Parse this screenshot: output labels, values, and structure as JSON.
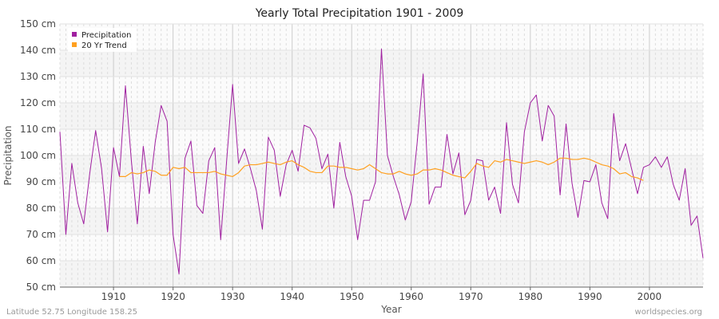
{
  "chart_data": {
    "type": "line",
    "title": "Yearly Total Precipitation 1901 - 2009",
    "xlabel": "Year",
    "ylabel": "Precipitation",
    "xlim": [
      1901,
      2009
    ],
    "ylim": [
      50,
      150
    ],
    "x_ticks": [
      1910,
      1920,
      1930,
      1940,
      1950,
      1960,
      1970,
      1980,
      1990,
      2000
    ],
    "y_ticks": [
      50,
      60,
      70,
      80,
      90,
      100,
      110,
      120,
      130,
      140,
      150
    ],
    "y_tick_labels": [
      "50 cm",
      "60 cm",
      "70 cm",
      "80 cm",
      "90 cm",
      "100 cm",
      "110 cm",
      "120 cm",
      "130 cm",
      "140 cm",
      "150 cm"
    ],
    "legend_position": "top-left",
    "grid": true,
    "colors": {
      "precipitation": "#a020a0",
      "trend": "#ffa020"
    },
    "series": [
      {
        "name": "Precipitation",
        "color": "#a020a0",
        "x_start": 1901,
        "values": [
          109,
          70,
          97,
          82,
          74,
          93,
          109.5,
          95,
          71,
          103,
          92,
          126.5,
          98,
          74,
          103.5,
          85.5,
          105,
          119,
          113,
          70,
          55,
          99,
          105.5,
          81,
          78,
          98,
          103,
          68,
          98,
          127,
          97,
          102.5,
          95,
          86.5,
          72,
          107,
          102,
          84.5,
          96.5,
          102,
          94,
          111.5,
          110.5,
          106.5,
          95,
          100.5,
          80,
          105,
          92,
          84.5,
          68,
          83,
          83,
          90,
          140.5,
          100,
          92,
          85,
          75.5,
          82.5,
          105,
          131,
          81.5,
          88,
          88,
          108,
          93,
          101,
          77.5,
          83,
          98.5,
          98,
          83,
          88,
          78,
          112.5,
          89,
          82,
          109,
          120,
          123,
          105.5,
          119,
          115,
          85,
          112,
          89.5,
          76.5,
          90.5,
          90,
          96.5,
          82,
          76,
          116,
          98,
          104.5,
          95,
          85.5,
          95.5,
          96.5,
          99.5,
          95.5,
          99.5,
          89,
          83,
          95,
          73.5,
          77,
          61
        ]
      },
      {
        "name": "20 Yr Trend",
        "color": "#ffa020",
        "x_start": 1911,
        "values": [
          92,
          92,
          93.5,
          93,
          93.5,
          94.5,
          94,
          92.5,
          92.5,
          95.5,
          95,
          95.5,
          93.5,
          93.5,
          93.5,
          93.5,
          94,
          93,
          92.5,
          92,
          93.5,
          96,
          96.5,
          96.5,
          97,
          97.5,
          97,
          96.5,
          97.5,
          98,
          96.5,
          95.5,
          94,
          93.5,
          93.5,
          96,
          96,
          95.5,
          95.5,
          95,
          94.5,
          95,
          96.5,
          95,
          93.5,
          93,
          93,
          94,
          93,
          92.5,
          93,
          94.5,
          94.5,
          95,
          94.5,
          93.5,
          92.5,
          92,
          91.5,
          94,
          97,
          96,
          95.5,
          98,
          97.5,
          98.5,
          98,
          97.5,
          97,
          97.5,
          98,
          97.5,
          96.5,
          97.5,
          99,
          99,
          98.5,
          98.5,
          99,
          98.5,
          97.5,
          96.5,
          96,
          95,
          93,
          93.5,
          92,
          91.5,
          90.5
        ]
      }
    ]
  },
  "footer": {
    "left": "Latitude 52.75 Longitude 158.25",
    "right": "worldspecies.org"
  }
}
